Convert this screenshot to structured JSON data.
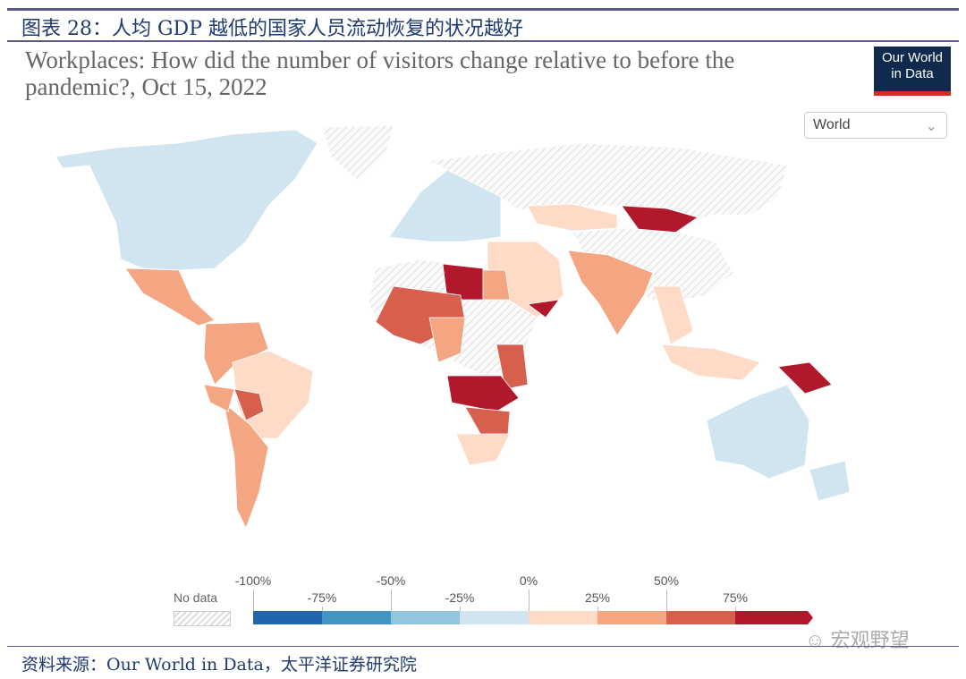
{
  "figure_title": "图表 28：人均 GDP 越低的国家人员流动恢复的状况越好",
  "chart_title": "Workplaces: How did the number of visitors change relative to before the pandemic?, Oct 15, 2022",
  "logo": {
    "line1": "Our World",
    "line2": "in Data"
  },
  "region_selector": {
    "value": "World",
    "icon": "chevron-down-icon"
  },
  "legend": {
    "no_data_label": "No data",
    "ticks": [
      "-100%",
      "-75%",
      "-50%",
      "-25%",
      "0%",
      "25%",
      "50%",
      "75%"
    ],
    "colors": [
      "#2166ac",
      "#4393c3",
      "#92c5de",
      "#d1e5f0",
      "#fddbc7",
      "#f4a582",
      "#d6604d",
      "#b2182b"
    ]
  },
  "watermark": "宏观野望",
  "source": "资料来源：Our World in Data，太平洋证券研究院"
}
